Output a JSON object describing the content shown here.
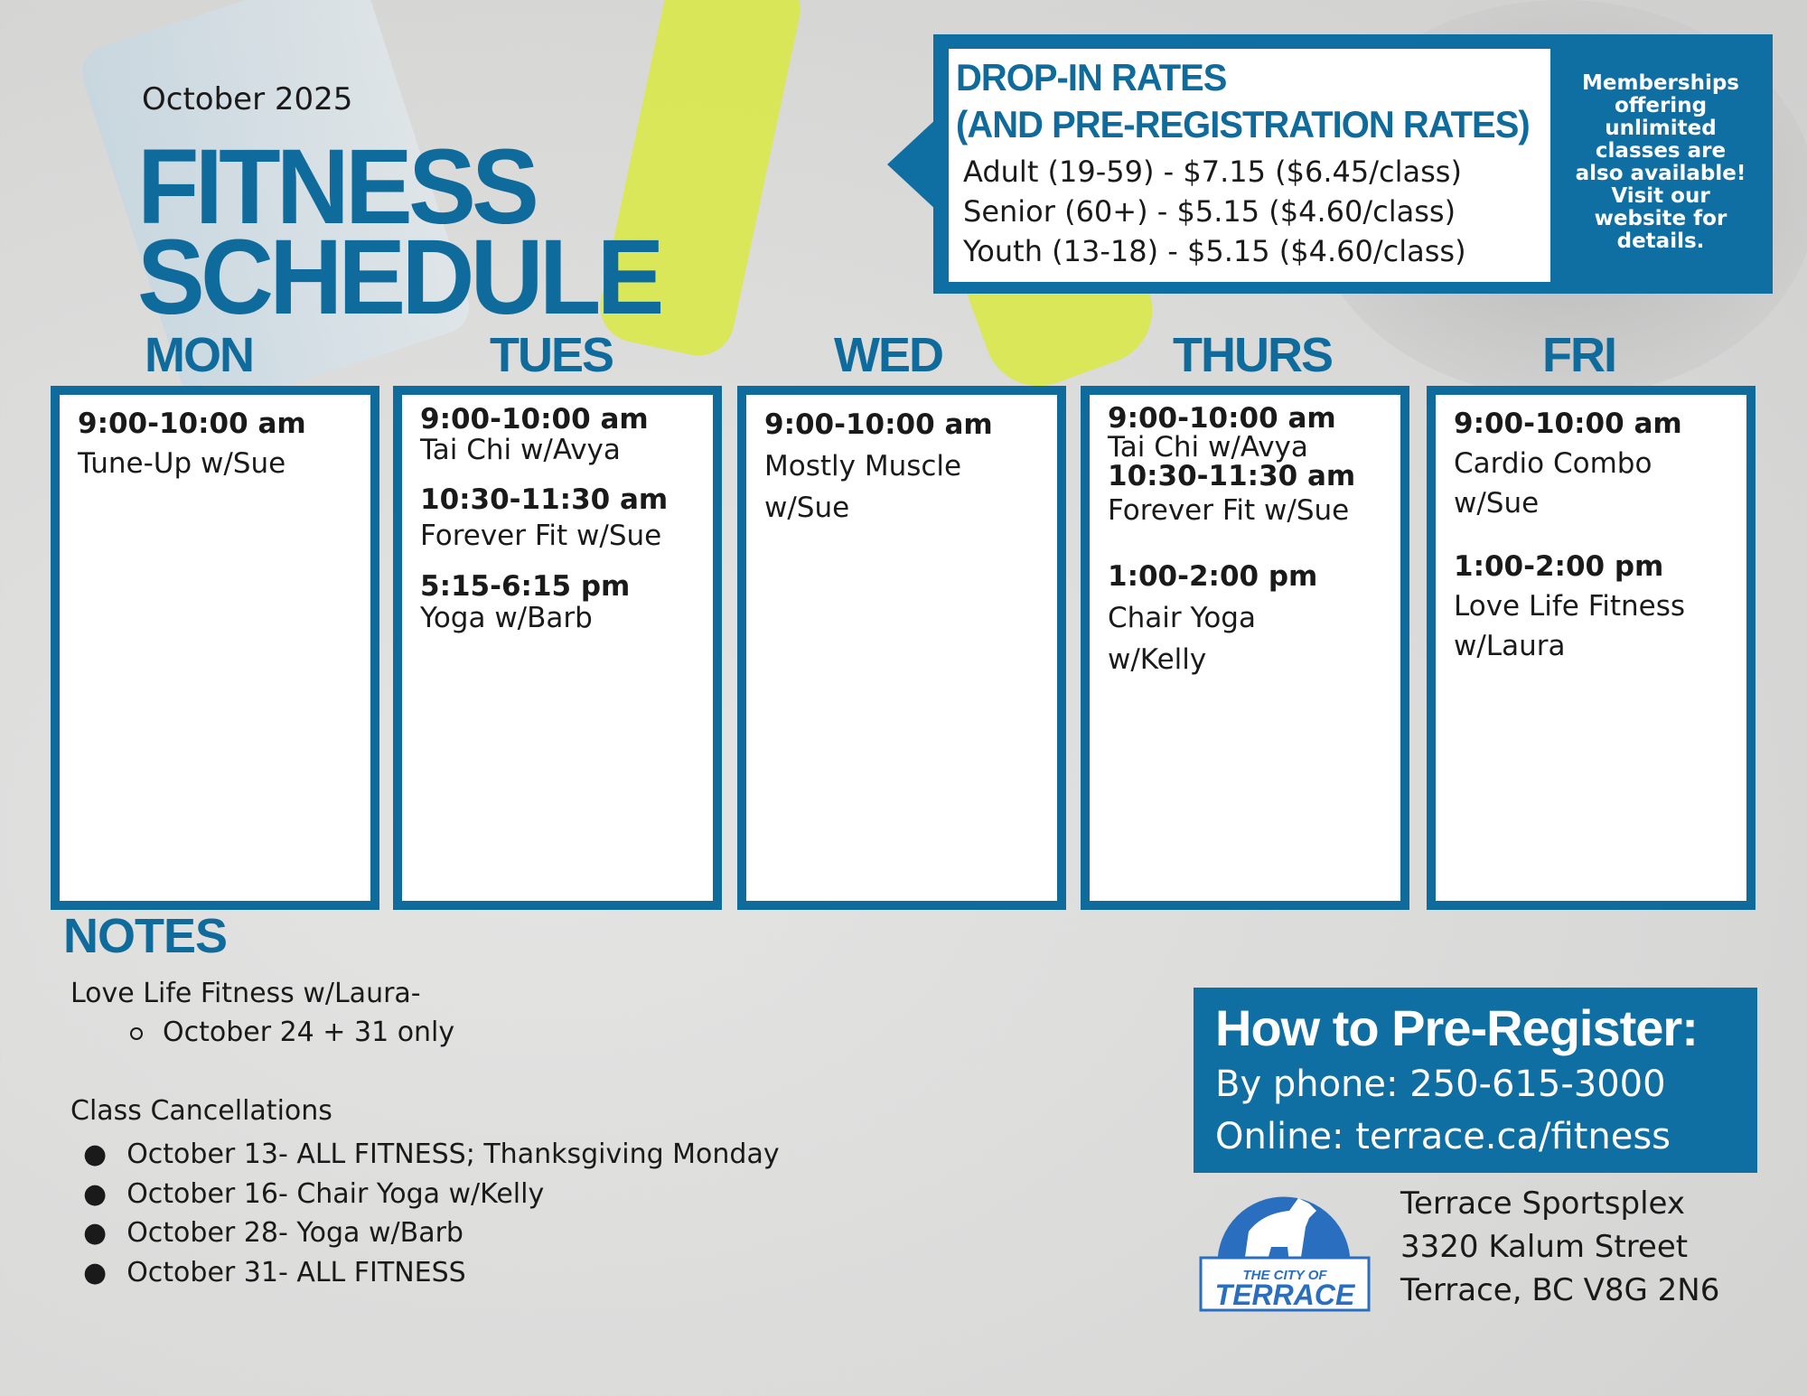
{
  "header": {
    "month": "October 2025",
    "title_line1": "FITNESS",
    "title_line2": "SCHEDULE"
  },
  "rates": {
    "heading_line1": "DROP-IN RATES",
    "heading_line2": "(AND PRE-REGISTRATION RATES)",
    "lines": [
      "Adult (19-59) - $7.15 ($6.45/class)",
      "Senior (60+) - $5.15 ($4.60/class)",
      "Youth (13-18) - $5.15 ($4.60/class)"
    ],
    "membership_note": [
      "Memberships",
      "offering",
      "unlimited",
      "classes are",
      "also available!",
      "Visit our",
      "website for",
      "details."
    ]
  },
  "days": [
    {
      "name": "MON",
      "classes": [
        {
          "time": "9:00-10:00 am",
          "desc": [
            "Tune-Up w/Sue"
          ]
        }
      ]
    },
    {
      "name": "TUES",
      "classes": [
        {
          "time": "9:00-10:00 am",
          "desc": [
            "Tai Chi w/Avya"
          ]
        },
        {
          "time": "10:30-11:30 am",
          "desc": [
            "Forever Fit w/Sue"
          ]
        },
        {
          "time": "5:15-6:15 pm",
          "desc": [
            "Yoga w/Barb"
          ]
        }
      ]
    },
    {
      "name": "WED",
      "classes": [
        {
          "time": "9:00-10:00 am",
          "desc": [
            "Mostly Muscle",
            "w/Sue"
          ]
        }
      ]
    },
    {
      "name": "THURS",
      "classes": [
        {
          "time": "9:00-10:00 am",
          "desc": [
            "Tai Chi w/Avya"
          ]
        },
        {
          "time": "10:30-11:30 am",
          "desc": [
            "Forever Fit w/Sue"
          ]
        },
        {
          "time": "1:00-2:00 pm",
          "desc": [
            "Chair Yoga",
            "w/Kelly"
          ]
        }
      ]
    },
    {
      "name": "FRI",
      "classes": [
        {
          "time": "9:00-10:00 am",
          "desc": [
            "Cardio Combo",
            "w/Sue"
          ]
        },
        {
          "time": "1:00-2:00 pm",
          "desc": [
            "Love Life Fitness",
            "w/Laura"
          ]
        }
      ]
    }
  ],
  "notes": {
    "heading": "NOTES",
    "item1": "Love Life Fitness w/Laura-",
    "item1_sub": "October 24 + 31 only",
    "cancel_heading": "Class Cancellations",
    "cancellations": [
      "October 13- ALL FITNESS; Thanksgiving Monday",
      "October 16- Chair Yoga w/Kelly",
      "October 28- Yoga w/Barb",
      "October 31- ALL FITNESS"
    ]
  },
  "prereg": {
    "heading": "How to Pre-Register:",
    "phone": "By phone: 250-615-3000",
    "online": "Online: terrace.ca/fitness"
  },
  "logo": {
    "line1": "THE CITY OF",
    "line2": "TERRACE"
  },
  "address": [
    "Terrace Sportsplex",
    "3320 Kalum Street",
    "Terrace, BC V8G 2N6"
  ],
  "colors": {
    "brand_blue": "#0f6fa3",
    "background": "#dcdcdb"
  }
}
